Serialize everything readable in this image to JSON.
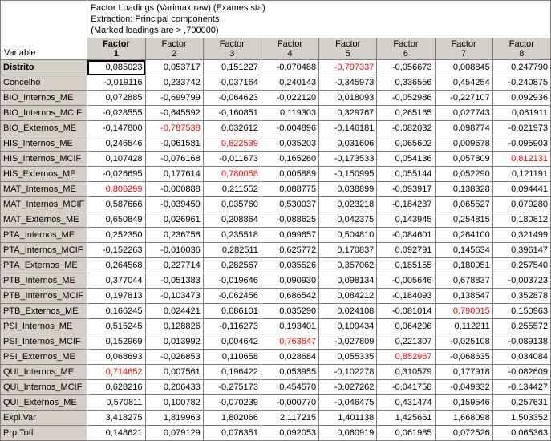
{
  "header": {
    "line1": "Factor Loadings (Varimax raw) (Exames.sta)",
    "line2": "Extraction: Principal components",
    "line3": "(Marked loadings are > ,700000)"
  },
  "corner_label": "Variable",
  "columns": [
    {
      "line1": "Factor",
      "line2": "1",
      "bold": true
    },
    {
      "line1": "Factor",
      "line2": "2",
      "bold": false
    },
    {
      "line1": "Factor",
      "line2": "3",
      "bold": false
    },
    {
      "line1": "Factor",
      "line2": "4",
      "bold": false
    },
    {
      "line1": "Factor",
      "line2": "5",
      "bold": false
    },
    {
      "line1": "Factor",
      "line2": "6",
      "bold": false
    },
    {
      "line1": "Factor",
      "line2": "7",
      "bold": false
    },
    {
      "line1": "Factor",
      "line2": "8",
      "bold": false
    }
  ],
  "rows": [
    {
      "label": "Distrito",
      "bold": true,
      "vals": [
        {
          "v": "0,085023",
          "box": true
        },
        {
          "v": "0,053717"
        },
        {
          "v": "0,151227"
        },
        {
          "v": "-0,070488"
        },
        {
          "v": "-0,797337",
          "red": true
        },
        {
          "v": "-0,056673"
        },
        {
          "v": "0,008845"
        },
        {
          "v": "0,247790"
        }
      ]
    },
    {
      "label": "Concelho",
      "vals": [
        {
          "v": "-0,019116"
        },
        {
          "v": "0,233742"
        },
        {
          "v": "-0,037164"
        },
        {
          "v": "0,240143"
        },
        {
          "v": "-0,345973"
        },
        {
          "v": "0,336556"
        },
        {
          "v": "0,454254"
        },
        {
          "v": "-0,240875"
        }
      ]
    },
    {
      "label": "BIO_Internos_ME",
      "vals": [
        {
          "v": "0,072885"
        },
        {
          "v": "-0,699799"
        },
        {
          "v": "-0,064623"
        },
        {
          "v": "-0,022120"
        },
        {
          "v": "0,018093"
        },
        {
          "v": "-0,052986"
        },
        {
          "v": "-0,227107"
        },
        {
          "v": "0,092936"
        }
      ]
    },
    {
      "label": "BIO_Internos_MCIF",
      "vals": [
        {
          "v": "-0,028555"
        },
        {
          "v": "-0,645592"
        },
        {
          "v": "-0,160851"
        },
        {
          "v": "0,119303"
        },
        {
          "v": "0,329767"
        },
        {
          "v": "0,265165"
        },
        {
          "v": "0,027743"
        },
        {
          "v": "0,061911"
        }
      ]
    },
    {
      "label": "BIO_Externos_ME",
      "vals": [
        {
          "v": "-0,147800"
        },
        {
          "v": "-0,787538",
          "red": true
        },
        {
          "v": "0,032612"
        },
        {
          "v": "-0,004896"
        },
        {
          "v": "-0,146181"
        },
        {
          "v": "-0,082032"
        },
        {
          "v": "0,098774"
        },
        {
          "v": "-0,021973"
        }
      ]
    },
    {
      "label": "HIS_Internos_ME",
      "vals": [
        {
          "v": "0,246546"
        },
        {
          "v": "-0,061581"
        },
        {
          "v": "0,822539",
          "red": true
        },
        {
          "v": "0,035203"
        },
        {
          "v": "0,031606"
        },
        {
          "v": "0,065602"
        },
        {
          "v": "0,009678"
        },
        {
          "v": "-0,095903"
        }
      ]
    },
    {
      "label": "HIS_Internos_MCIF",
      "vals": [
        {
          "v": "0,107428"
        },
        {
          "v": "-0,076168"
        },
        {
          "v": "-0,011673"
        },
        {
          "v": "0,165260"
        },
        {
          "v": "-0,173533"
        },
        {
          "v": "0,054136"
        },
        {
          "v": "0,057809"
        },
        {
          "v": "0,812131",
          "red": true
        }
      ]
    },
    {
      "label": "HIS_Externos_ME",
      "vals": [
        {
          "v": "-0,026695"
        },
        {
          "v": "0,177614"
        },
        {
          "v": "0,780058",
          "red": true
        },
        {
          "v": "0,005889"
        },
        {
          "v": "-0,150995"
        },
        {
          "v": "0,055144"
        },
        {
          "v": "0,052290"
        },
        {
          "v": "0,121191"
        }
      ]
    },
    {
      "label": "MAT_Internos_ME",
      "vals": [
        {
          "v": "0,806299",
          "red": true
        },
        {
          "v": "-0,000888"
        },
        {
          "v": "0,211552"
        },
        {
          "v": "0,088775"
        },
        {
          "v": "0,038899"
        },
        {
          "v": "-0,093917"
        },
        {
          "v": "0,138328"
        },
        {
          "v": "0,094441"
        }
      ]
    },
    {
      "label": "MAT_Internos_MCIF",
      "vals": [
        {
          "v": "0,587666"
        },
        {
          "v": "-0,039459"
        },
        {
          "v": "0,035760"
        },
        {
          "v": "0,530037"
        },
        {
          "v": "0,023218"
        },
        {
          "v": "-0,184237"
        },
        {
          "v": "0,065527"
        },
        {
          "v": "0,079280"
        }
      ]
    },
    {
      "label": "MAT_Externos_ME",
      "vals": [
        {
          "v": "0,650849"
        },
        {
          "v": "0,026961"
        },
        {
          "v": "0,208864"
        },
        {
          "v": "-0,088625"
        },
        {
          "v": "0,042375"
        },
        {
          "v": "0,143945"
        },
        {
          "v": "0,254815"
        },
        {
          "v": "0,180812"
        }
      ]
    },
    {
      "label": "PTA_Internos_ME",
      "vals": [
        {
          "v": "0,252350"
        },
        {
          "v": "0,236758"
        },
        {
          "v": "0,235518"
        },
        {
          "v": "0,099657"
        },
        {
          "v": "0,504810"
        },
        {
          "v": "-0,084601"
        },
        {
          "v": "0,264100"
        },
        {
          "v": "0,321499"
        }
      ]
    },
    {
      "label": "PTA_Internos_MCIF",
      "vals": [
        {
          "v": "-0,152263"
        },
        {
          "v": "-0,010036"
        },
        {
          "v": "0,282511"
        },
        {
          "v": "0,625772"
        },
        {
          "v": "0,170837"
        },
        {
          "v": "0,092791"
        },
        {
          "v": "0,145634"
        },
        {
          "v": "0,396147"
        }
      ]
    },
    {
      "label": "PTA_Externos_ME",
      "vals": [
        {
          "v": "0,264568"
        },
        {
          "v": "0,227714"
        },
        {
          "v": "0,282567"
        },
        {
          "v": "0,035526"
        },
        {
          "v": "0,357062"
        },
        {
          "v": "0,185155"
        },
        {
          "v": "0,180051"
        },
        {
          "v": "0,257540"
        }
      ]
    },
    {
      "label": "PTB_Internos_ME",
      "vals": [
        {
          "v": "0,377044"
        },
        {
          "v": "-0,051383"
        },
        {
          "v": "-0,019646"
        },
        {
          "v": "0,090930"
        },
        {
          "v": "0,098134"
        },
        {
          "v": "-0,005646"
        },
        {
          "v": "0,678837"
        },
        {
          "v": "-0,003723"
        }
      ]
    },
    {
      "label": "PTB_Internos_MCIF",
      "vals": [
        {
          "v": "0,197813"
        },
        {
          "v": "-0,103473"
        },
        {
          "v": "-0,062456"
        },
        {
          "v": "0,686542"
        },
        {
          "v": "0,084212"
        },
        {
          "v": "-0,184093"
        },
        {
          "v": "0,138547"
        },
        {
          "v": "0,352878"
        }
      ]
    },
    {
      "label": "PTB_Externos_ME",
      "vals": [
        {
          "v": "0,166245"
        },
        {
          "v": "0,024421"
        },
        {
          "v": "0,086101"
        },
        {
          "v": "0,035290"
        },
        {
          "v": "0,024108"
        },
        {
          "v": "-0,081014"
        },
        {
          "v": "0,790015",
          "red": true
        },
        {
          "v": "0,150963"
        }
      ]
    },
    {
      "label": "PSI_Internos_ME",
      "vals": [
        {
          "v": "0,515245"
        },
        {
          "v": "0,128826"
        },
        {
          "v": "-0,116273"
        },
        {
          "v": "0,193401"
        },
        {
          "v": "0,109434"
        },
        {
          "v": "0,064296"
        },
        {
          "v": "0,112211"
        },
        {
          "v": "0,255572"
        }
      ]
    },
    {
      "label": "PSI_Internos_MCIF",
      "vals": [
        {
          "v": "0,152969"
        },
        {
          "v": "0,013992"
        },
        {
          "v": "0,004642"
        },
        {
          "v": "0,763647",
          "red": true
        },
        {
          "v": "-0,027809"
        },
        {
          "v": "0,221307"
        },
        {
          "v": "-0,025108"
        },
        {
          "v": "-0,089138"
        }
      ]
    },
    {
      "label": "PSI_Externos_ME",
      "vals": [
        {
          "v": "0,068693"
        },
        {
          "v": "-0,026853"
        },
        {
          "v": "0,110658"
        },
        {
          "v": "0,028684"
        },
        {
          "v": "0,055335"
        },
        {
          "v": "0,852967",
          "red": true
        },
        {
          "v": "-0,068635"
        },
        {
          "v": "0,034084"
        }
      ]
    },
    {
      "label": "QUI_Internos_ME",
      "vals": [
        {
          "v": "0,714652",
          "red": true
        },
        {
          "v": "0,007561"
        },
        {
          "v": "0,196422"
        },
        {
          "v": "0,053955"
        },
        {
          "v": "-0,102278"
        },
        {
          "v": "0,310579"
        },
        {
          "v": "0,177918"
        },
        {
          "v": "-0,082609"
        }
      ]
    },
    {
      "label": "QUI_Internos_MCIF",
      "vals": [
        {
          "v": "0,628216"
        },
        {
          "v": "0,206433"
        },
        {
          "v": "-0,275173"
        },
        {
          "v": "0,454570"
        },
        {
          "v": "-0,027262"
        },
        {
          "v": "-0,041758"
        },
        {
          "v": "-0,049832"
        },
        {
          "v": "-0,134427"
        }
      ]
    },
    {
      "label": "QUI_Externos_ME",
      "vals": [
        {
          "v": "0,570811"
        },
        {
          "v": "0,100782"
        },
        {
          "v": "-0,070239"
        },
        {
          "v": "-0,000770"
        },
        {
          "v": "-0,046475"
        },
        {
          "v": "0,431474"
        },
        {
          "v": "0,159546"
        },
        {
          "v": "0,257631"
        }
      ]
    },
    {
      "label": "Expl.Var",
      "vals": [
        {
          "v": "3,418275"
        },
        {
          "v": "1,819963"
        },
        {
          "v": "1,802066"
        },
        {
          "v": "2,117215"
        },
        {
          "v": "1,401138"
        },
        {
          "v": "1,425661"
        },
        {
          "v": "1,668098"
        },
        {
          "v": "1,503352"
        }
      ]
    },
    {
      "label": "Prp.Totl",
      "vals": [
        {
          "v": "0,148621"
        },
        {
          "v": "0,079129"
        },
        {
          "v": "0,078351"
        },
        {
          "v": "0,092053"
        },
        {
          "v": "0,060919"
        },
        {
          "v": "0,061985"
        },
        {
          "v": "0,072526"
        },
        {
          "v": "0,065363"
        }
      ]
    }
  ],
  "colors": {
    "header_bg": "#d4d0c8",
    "border": "#808080",
    "red": "#ff0000",
    "text": "#000000"
  }
}
